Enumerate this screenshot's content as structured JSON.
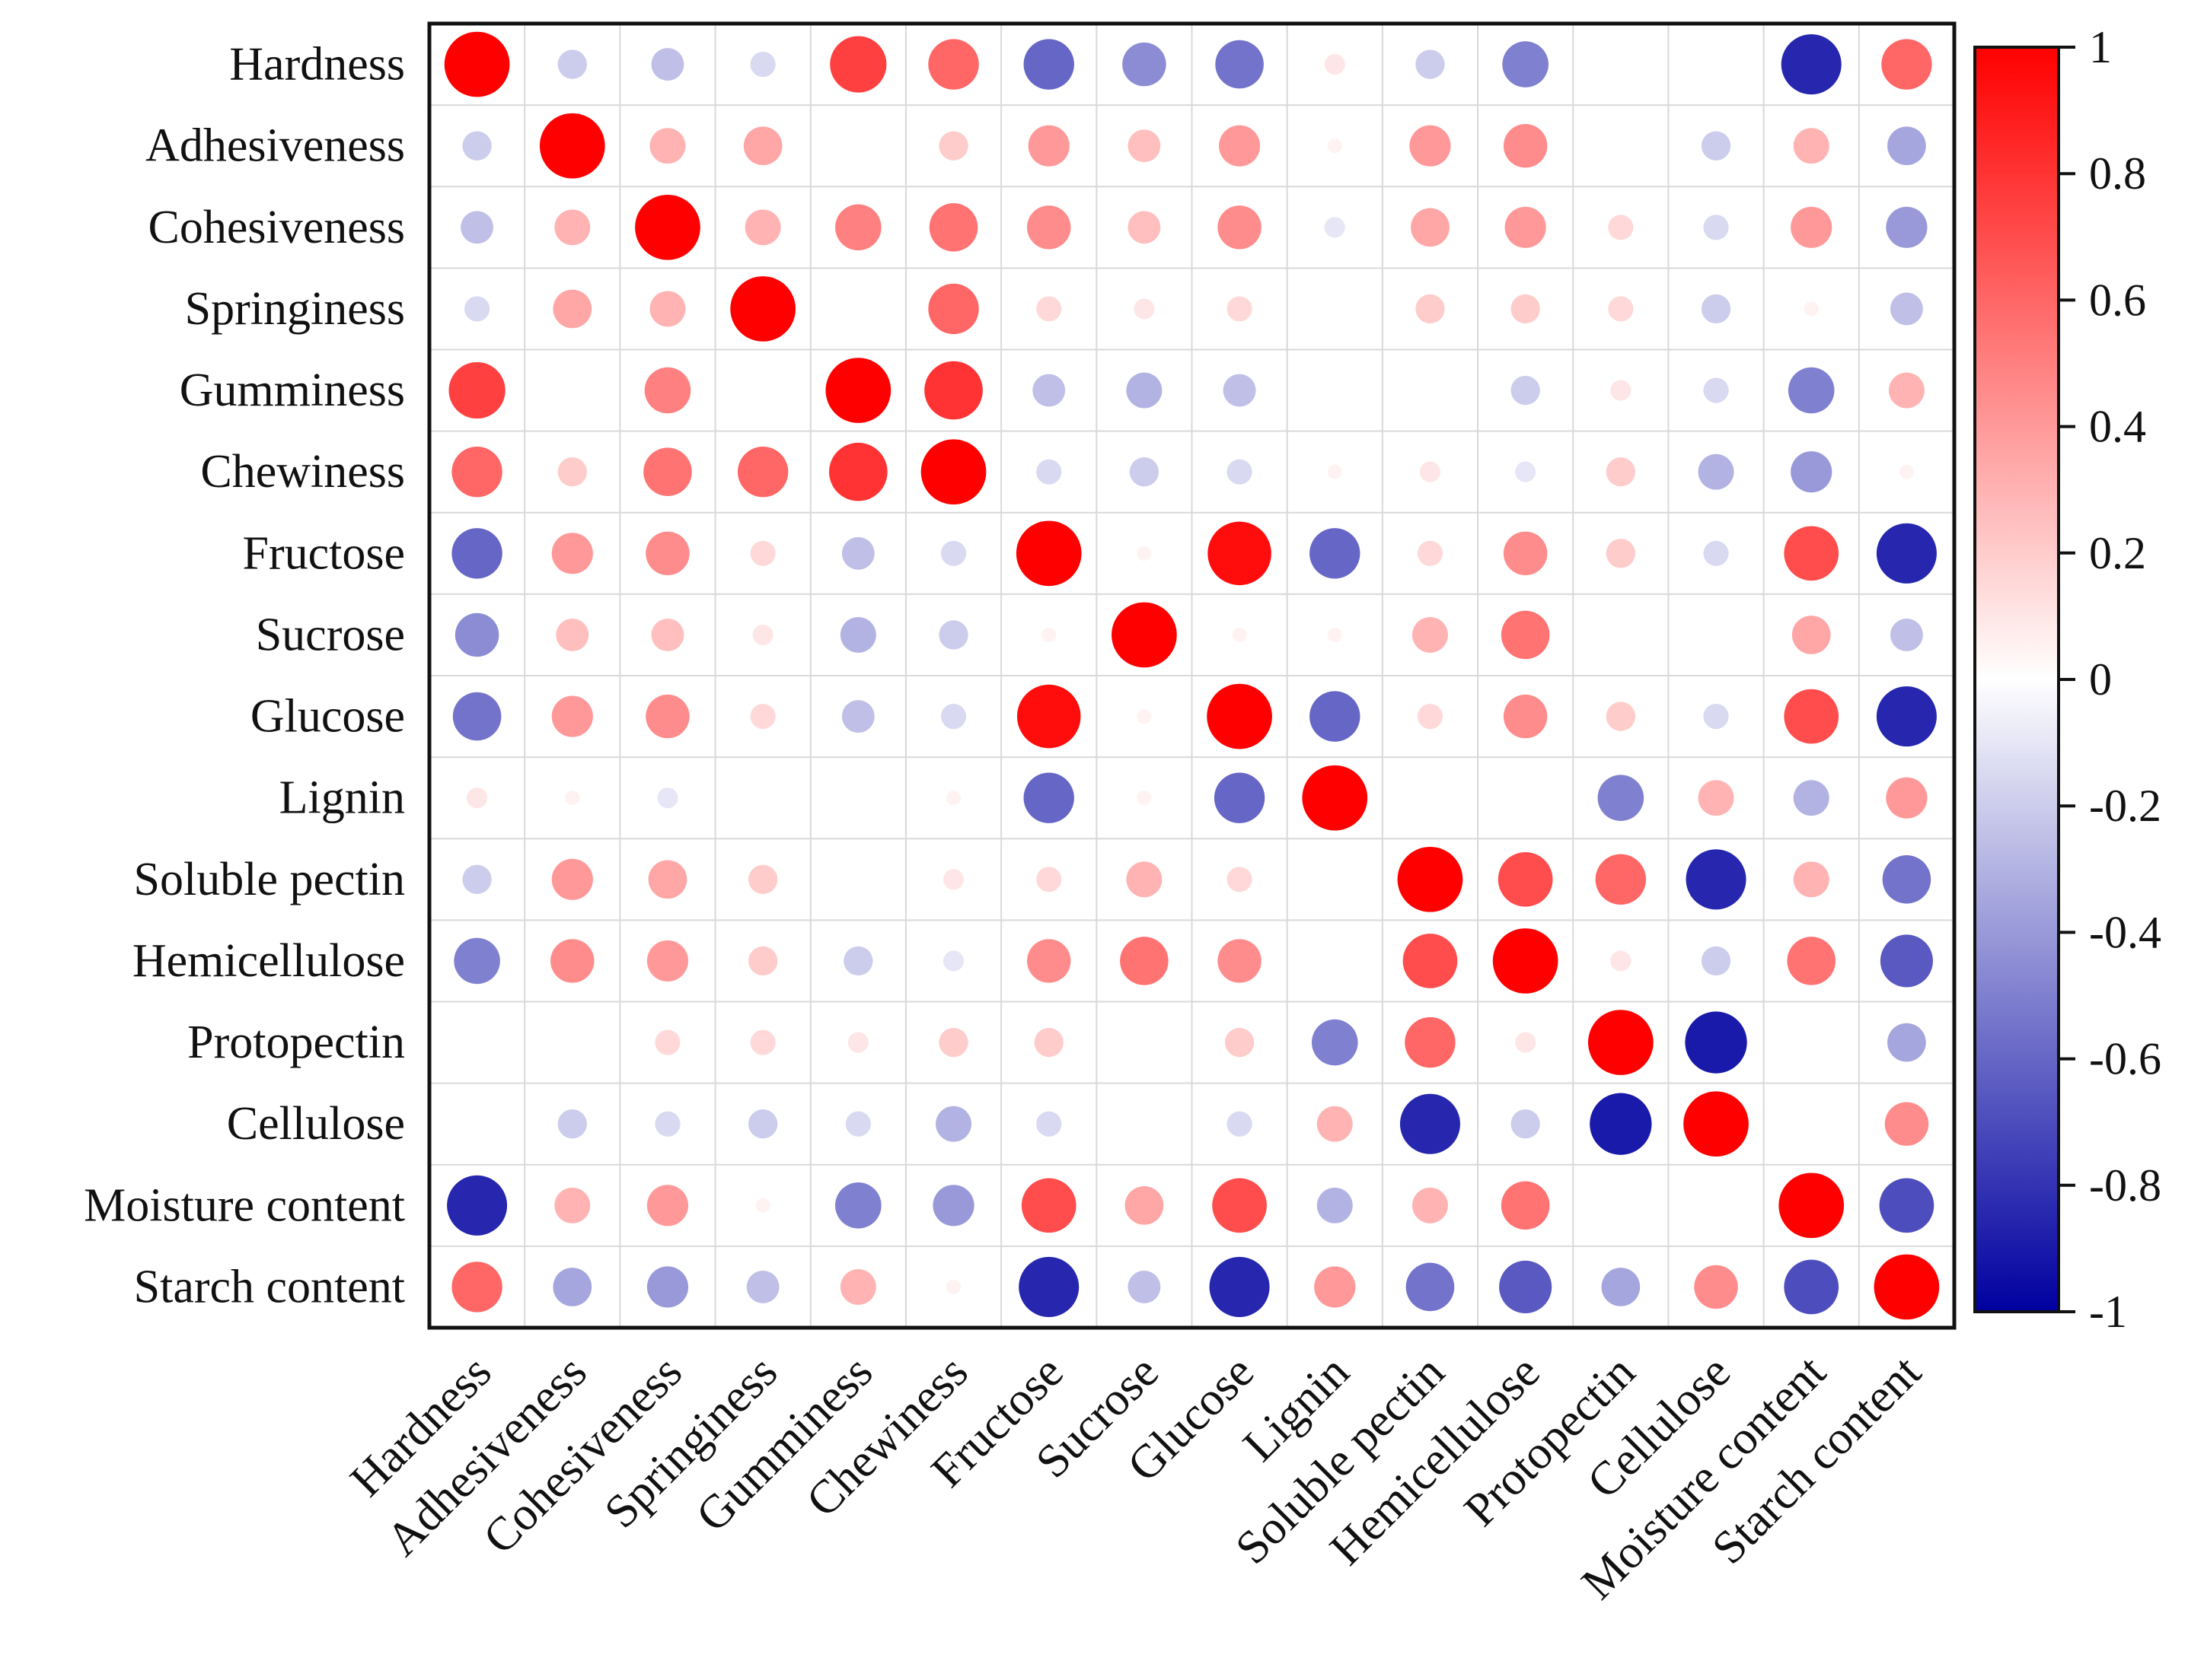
{
  "chart_data": {
    "type": "heatmap",
    "title": "",
    "xlabel": "",
    "ylabel": "",
    "variables": [
      "Hardness",
      "Adhesiveness",
      "Cohesiveness",
      "Springiness",
      "Gumminess",
      "Chewiness",
      "Fructose",
      "Sucrose",
      "Glucose",
      "Lignin",
      "Soluble pectin",
      "Hemicellulose",
      "Protopectin",
      "Cellulose",
      "Moisture content",
      "Starch content"
    ],
    "matrix": [
      [
        1,
        -0.2,
        -0.25,
        -0.15,
        0.75,
        0.6,
        -0.6,
        -0.45,
        -0.55,
        0.1,
        -0.2,
        -0.5,
        0,
        0,
        -0.85,
        0.6
      ],
      [
        -0.2,
        1,
        0.3,
        0.35,
        0,
        0.2,
        0.4,
        0.25,
        0.4,
        0.05,
        0.4,
        0.45,
        0,
        -0.2,
        0.3,
        -0.35
      ],
      [
        -0.25,
        0.3,
        1,
        0.3,
        0.5,
        0.55,
        0.45,
        0.25,
        0.45,
        -0.1,
        0.35,
        0.4,
        0.15,
        -0.15,
        0.4,
        -0.4
      ],
      [
        -0.15,
        0.35,
        0.3,
        1,
        0,
        0.6,
        0.15,
        0.1,
        0.15,
        0,
        0.2,
        0.2,
        0.15,
        -0.2,
        0.05,
        -0.25
      ],
      [
        0.75,
        0,
        0.5,
        0,
        1,
        0.8,
        -0.25,
        -0.3,
        -0.25,
        0,
        0,
        -0.2,
        0.1,
        -0.15,
        -0.5,
        0.3
      ],
      [
        0.6,
        0.2,
        0.55,
        0.6,
        0.8,
        1,
        -0.15,
        -0.2,
        -0.15,
        0.05,
        0.1,
        -0.1,
        0.2,
        -0.3,
        -0.4,
        0.05
      ],
      [
        -0.6,
        0.4,
        0.45,
        0.15,
        -0.25,
        -0.15,
        1,
        0.05,
        0.95,
        -0.6,
        0.15,
        0.45,
        0.2,
        -0.15,
        0.7,
        -0.85
      ],
      [
        -0.45,
        0.25,
        0.25,
        0.1,
        -0.3,
        -0.2,
        0.05,
        1,
        0.05,
        0.05,
        0.3,
        0.55,
        0,
        0,
        0.35,
        -0.25
      ],
      [
        -0.55,
        0.4,
        0.45,
        0.15,
        -0.25,
        -0.15,
        0.95,
        0.05,
        1,
        -0.6,
        0.15,
        0.45,
        0.2,
        -0.15,
        0.7,
        -0.85
      ],
      [
        0.1,
        0.05,
        -0.1,
        0,
        0,
        0.05,
        -0.6,
        0.05,
        -0.6,
        1,
        0,
        0,
        -0.5,
        0.3,
        -0.3,
        0.4
      ],
      [
        -0.2,
        0.4,
        0.35,
        0.2,
        0,
        0.1,
        0.15,
        0.3,
        0.15,
        0,
        1,
        0.7,
        0.6,
        -0.85,
        0.3,
        -0.55
      ],
      [
        -0.5,
        0.45,
        0.4,
        0.2,
        -0.2,
        -0.1,
        0.45,
        0.55,
        0.45,
        0,
        0.7,
        1,
        0.1,
        -0.2,
        0.55,
        -0.65
      ],
      [
        0,
        0,
        0.15,
        0.15,
        0.1,
        0.2,
        0.2,
        0,
        0.2,
        -0.5,
        0.6,
        0.1,
        1,
        -0.9,
        0,
        -0.35
      ],
      [
        0,
        -0.2,
        -0.15,
        -0.2,
        -0.15,
        -0.3,
        -0.15,
        0,
        -0.15,
        0.3,
        -0.85,
        -0.2,
        -0.9,
        1,
        0,
        0.45
      ],
      [
        -0.85,
        0.3,
        0.4,
        0.05,
        -0.5,
        -0.4,
        0.7,
        0.35,
        0.7,
        -0.3,
        0.3,
        0.55,
        0,
        0,
        1,
        -0.7
      ],
      [
        0.6,
        -0.35,
        -0.4,
        -0.25,
        0.3,
        0.05,
        -0.85,
        -0.25,
        -0.85,
        0.4,
        -0.55,
        -0.65,
        -0.35,
        0.45,
        -0.7,
        1
      ]
    ],
    "color_scale": {
      "min": -1,
      "max": 1,
      "low_color": "#0000a0",
      "mid_color": "#ffffff",
      "high_color": "#ff0000",
      "ticks": [
        "1",
        "0.8",
        "0.6",
        "0.4",
        "0.2",
        "0",
        "-0.2",
        "-0.4",
        "-0.6",
        "-0.8",
        "-1"
      ]
    },
    "grid": true,
    "legend": "right"
  }
}
